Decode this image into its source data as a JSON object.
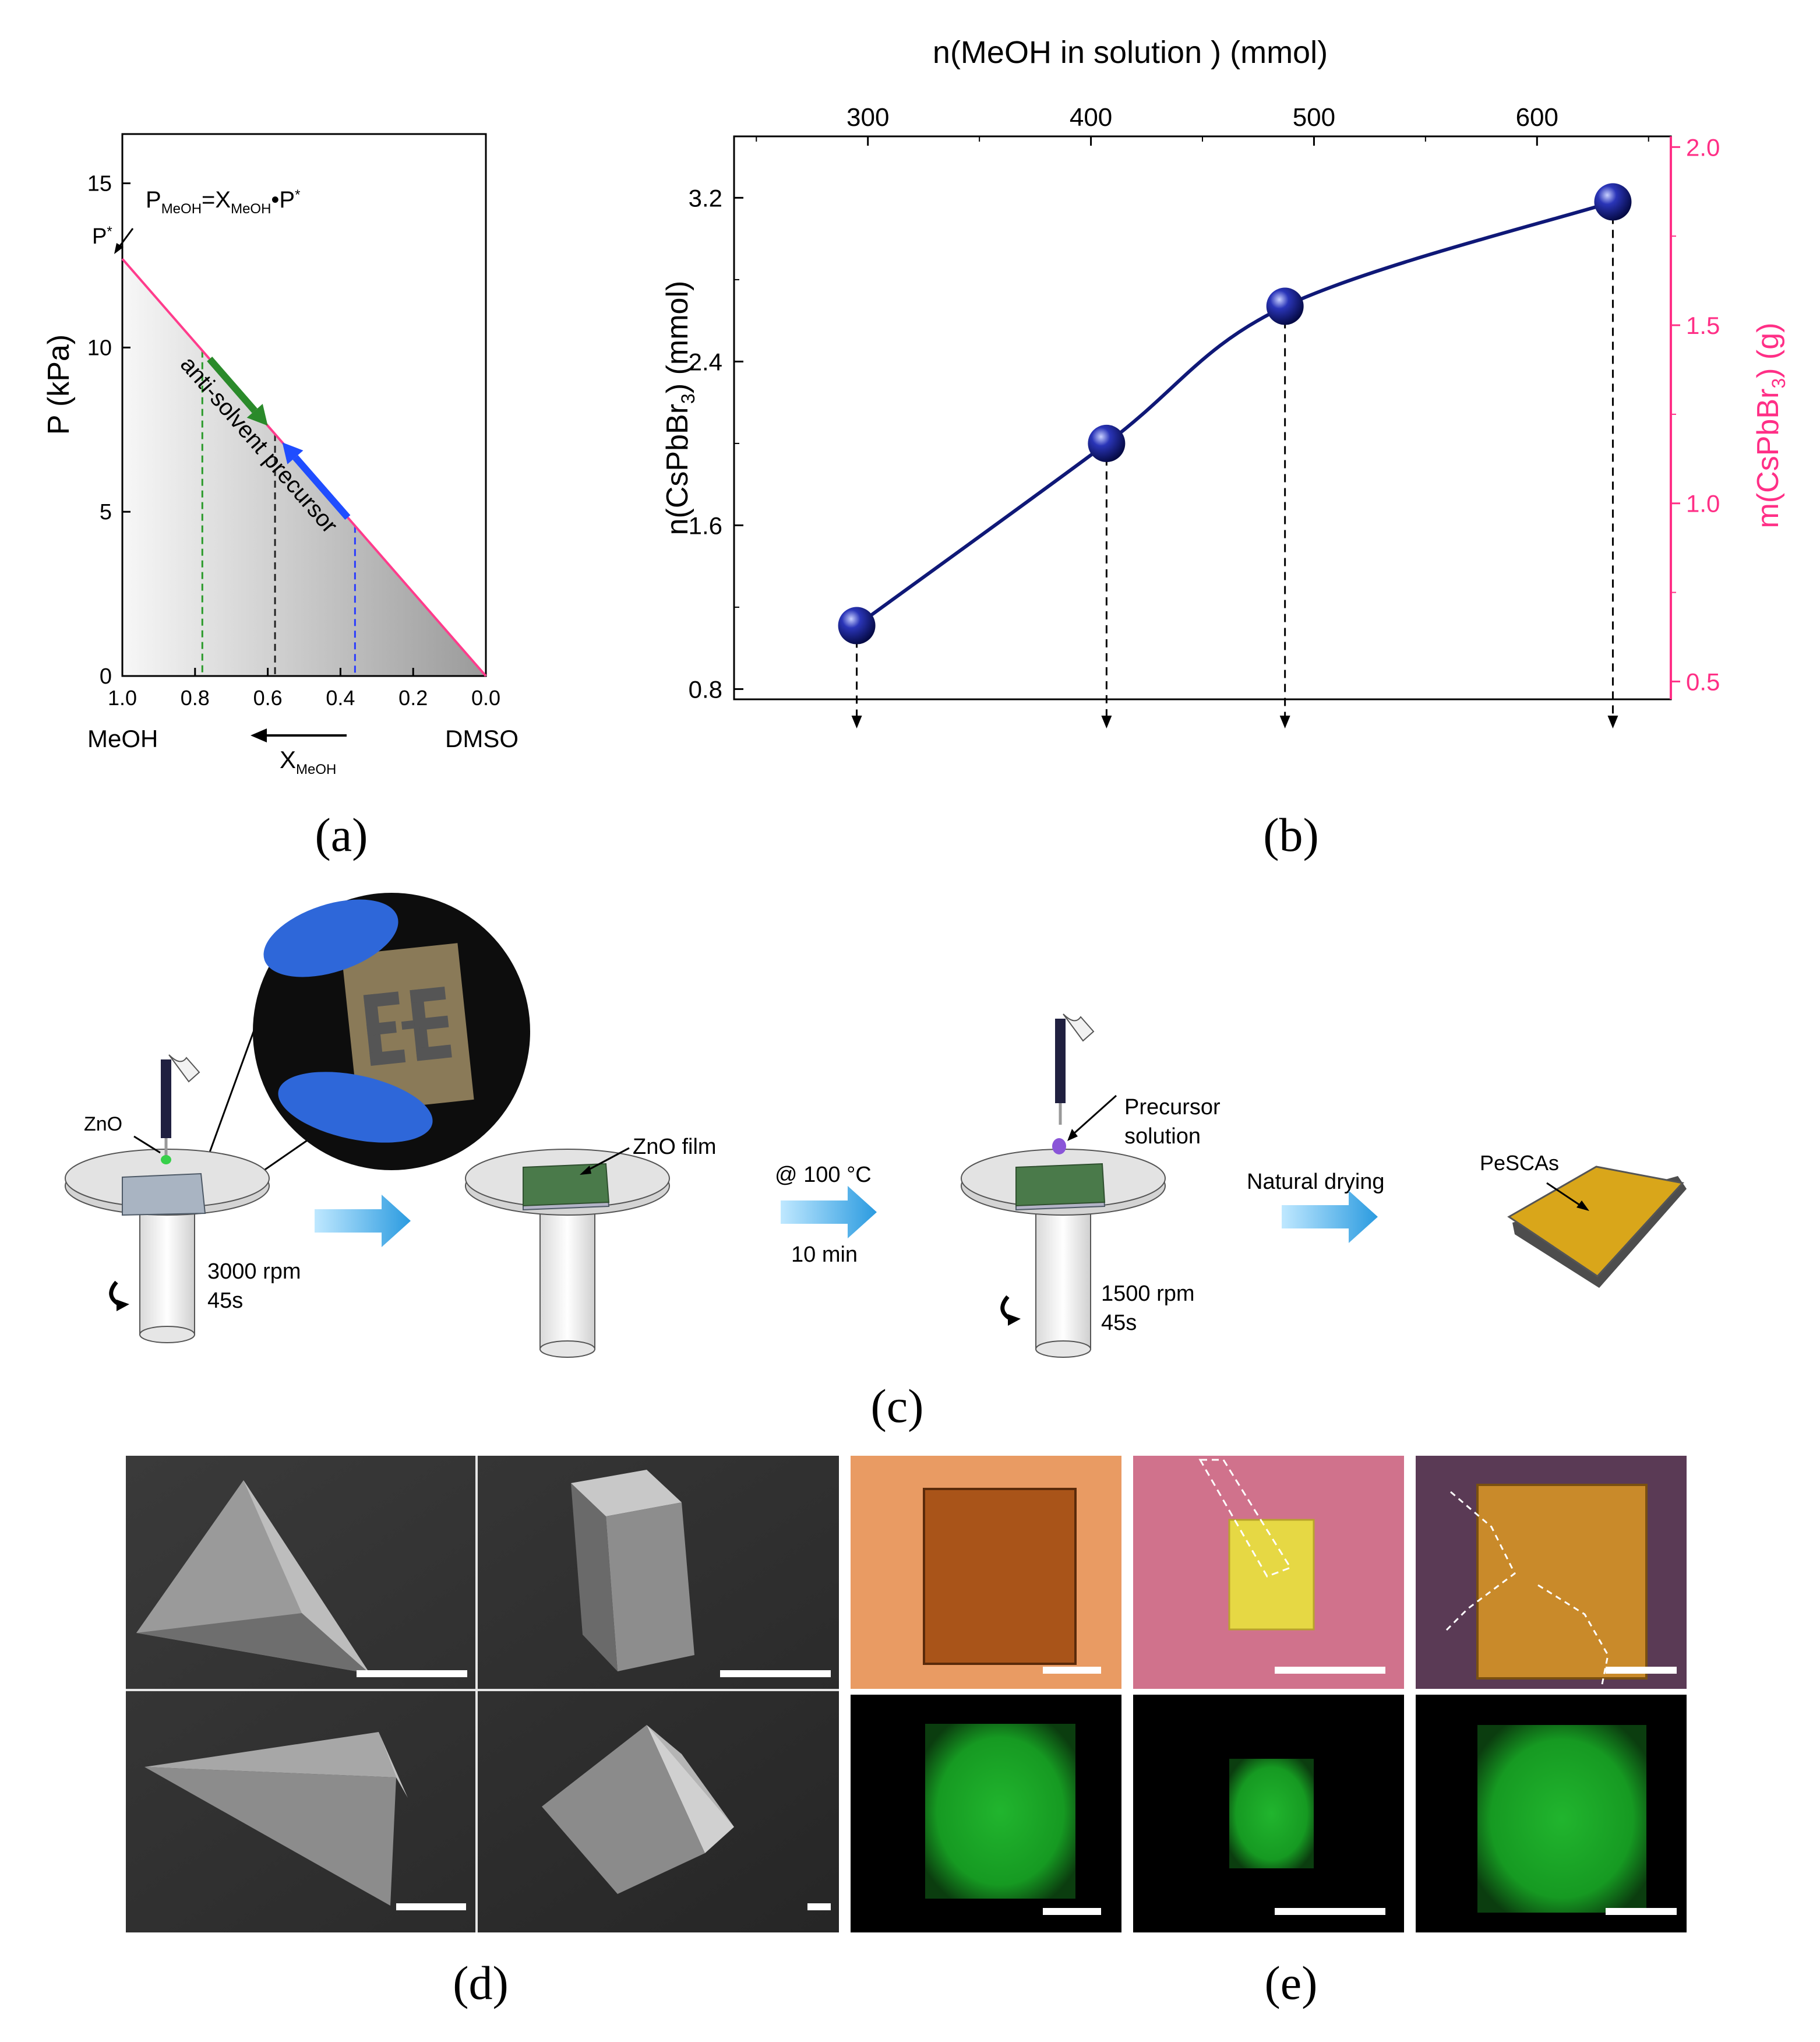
{
  "chart_data": [
    {
      "panel_label": "(a)",
      "type": "line",
      "ylabel": "P (kPa)",
      "x_ticks": [
        "1.0",
        "0.8",
        "0.6",
        "0.4",
        "0.2",
        "0.0"
      ],
      "y_ticks": [
        "0",
        "5",
        "10",
        "15"
      ],
      "xlim": [
        1.0,
        0.0
      ],
      "ylim": [
        0,
        16.5
      ],
      "x_left_label": "MeOH",
      "x_right_label": "DMSO",
      "x_axis_label": "X",
      "x_axis_label_sub": "MeOH",
      "equation": {
        "p": "P",
        "p_sub": "MeOH",
        "eq": "=X",
        "x_sub": "MeOH",
        "tail": "•P",
        "sup": "*"
      },
      "pstar_label": "P",
      "pstar_sup": "*",
      "line": {
        "x": [
          1.0,
          0.0
        ],
        "y": [
          12.7,
          0.0
        ],
        "color": "#ff3c8c"
      },
      "dashed_markers": [
        {
          "x": 0.78,
          "color": "#2a9a2a"
        },
        {
          "x": 0.58,
          "color": "#222222"
        },
        {
          "x": 0.36,
          "color": "#2a3cff"
        }
      ],
      "arrows": [
        {
          "label": "anti-solvent",
          "from_x": 0.76,
          "to_x": 0.6,
          "color": "#2a8a2a"
        },
        {
          "label": "precursor",
          "from_x": 0.38,
          "to_x": 0.56,
          "color": "#1f4dff"
        }
      ]
    },
    {
      "panel_label": "(b)",
      "type": "line",
      "top_xlabel": "n(MeOH in solution ) (mmol)",
      "top_ticks": [
        300,
        400,
        500,
        600
      ],
      "xlim": [
        240,
        660
      ],
      "ylabel_left": "n(CsPbBr",
      "ylabel_left_sub": "3",
      "ylabel_left_tail": ") (mmol)",
      "ylim_left": [
        0.75,
        3.5
      ],
      "left_ticks": [
        "0.8",
        "1.6",
        "2.4",
        "3.2"
      ],
      "ylabel_right": "m(CsPbBr",
      "ylabel_right_sub": "3",
      "ylabel_right_tail": ") (g)",
      "ylim_right": [
        0.45,
        2.03
      ],
      "right_ticks": [
        "0.5",
        "1.0",
        "1.5",
        "2.0"
      ],
      "right_color": "#ff2f86",
      "line_color": "#0f1877",
      "x": [
        295,
        407,
        487,
        634
      ],
      "y": [
        1.11,
        2.0,
        2.67,
        3.18
      ]
    }
  ],
  "panels": {
    "a_label": "(a)",
    "b_label": "(b)",
    "c_label": "(c)",
    "d_label": "(d)",
    "e_label": "(e)"
  },
  "process": {
    "zno": "ZnO",
    "spin1": "3000 rpm",
    "time1": "45s",
    "zno_film": "ZnO film",
    "anneal_temp": "@ 100 °C",
    "anneal_time": "10 min",
    "precursor_line1": "Precursor",
    "precursor_line2": "solution",
    "spin2": "1500 rpm",
    "time2": "45s",
    "drying": "Natural drying",
    "product": "PeSCAs"
  }
}
